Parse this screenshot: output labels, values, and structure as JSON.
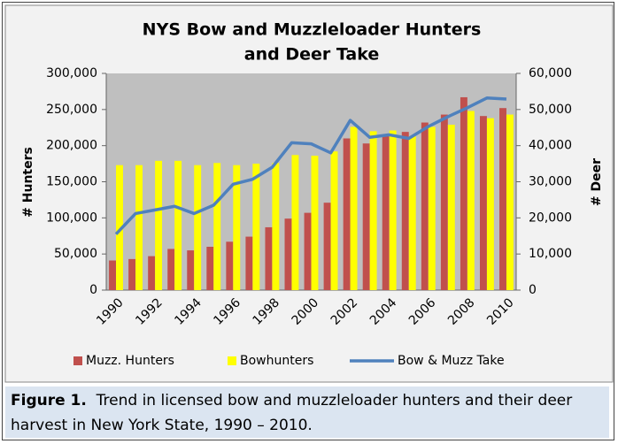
{
  "chart_data": {
    "type": "bar_line",
    "title": [
      "NYS Bow and Muzzleloader  Hunters",
      "and Deer Take"
    ],
    "ylabel": "# Hunters",
    "y2label": "# Deer",
    "categories": [
      "1990",
      null,
      "1992",
      null,
      "1994",
      null,
      "1996",
      null,
      "1998",
      null,
      "2000",
      null,
      "2002",
      null,
      "2004",
      null,
      "2006",
      null,
      "2008",
      null,
      "2010"
    ],
    "series": [
      {
        "name": "Muzz. Hunters",
        "color": "#c0504d",
        "kind": "bar",
        "values": [
          41000,
          43000,
          47000,
          57000,
          55000,
          60000,
          67000,
          74000,
          87000,
          99000,
          107000,
          121000,
          210000,
          203000,
          215000,
          219000,
          232000,
          243000,
          267000,
          241000,
          252000
        ]
      },
      {
        "name": "Bowhunters",
        "color": "#ffff00",
        "kind": "bar",
        "values": [
          173000,
          173000,
          179000,
          179000,
          173000,
          176000,
          173000,
          175000,
          176000,
          187000,
          186000,
          192000,
          226000,
          220000,
          221000,
          213000,
          226000,
          229000,
          248000,
          238000,
          243000
        ]
      },
      {
        "name": "Bow & Muzz Take",
        "color": "#4f81bd",
        "kind": "line",
        "axis": "y2",
        "values": [
          15500,
          21200,
          22200,
          23200,
          21200,
          23500,
          29300,
          30700,
          34000,
          40800,
          40500,
          38000,
          47000,
          42300,
          43000,
          42000,
          45300,
          48000,
          50500,
          53200,
          52900
        ]
      }
    ],
    "ylim": [
      0,
      300000
    ],
    "yticks": [
      0,
      {
        "value": 50000,
        "label": "50,000"
      },
      {
        "value": 100000,
        "label": "100,000"
      },
      {
        "value": 150000,
        "label": "150,000"
      },
      {
        "value": 200000,
        "label": "200,000"
      },
      {
        "value": 250000,
        "label": "250,000"
      },
      {
        "value": 300000,
        "label": "300,000"
      }
    ],
    "y2lim": [
      0,
      60000
    ],
    "y2ticks": [
      0,
      {
        "value": 10000,
        "label": "10,000"
      },
      {
        "value": 20000,
        "label": "20,000"
      },
      {
        "value": 30000,
        "label": "30,000"
      },
      {
        "value": 40000,
        "label": "40,000"
      },
      {
        "value": 50000,
        "label": "50,000"
      },
      {
        "value": 60000,
        "label": "60,000"
      }
    ],
    "grid": false,
    "legend": "bottom"
  },
  "caption": {
    "label": "Figure 1.",
    "text": "Trend in licensed bow and muzzleloader hunters and their deer harvest in New York State, 1990 – 2010."
  }
}
